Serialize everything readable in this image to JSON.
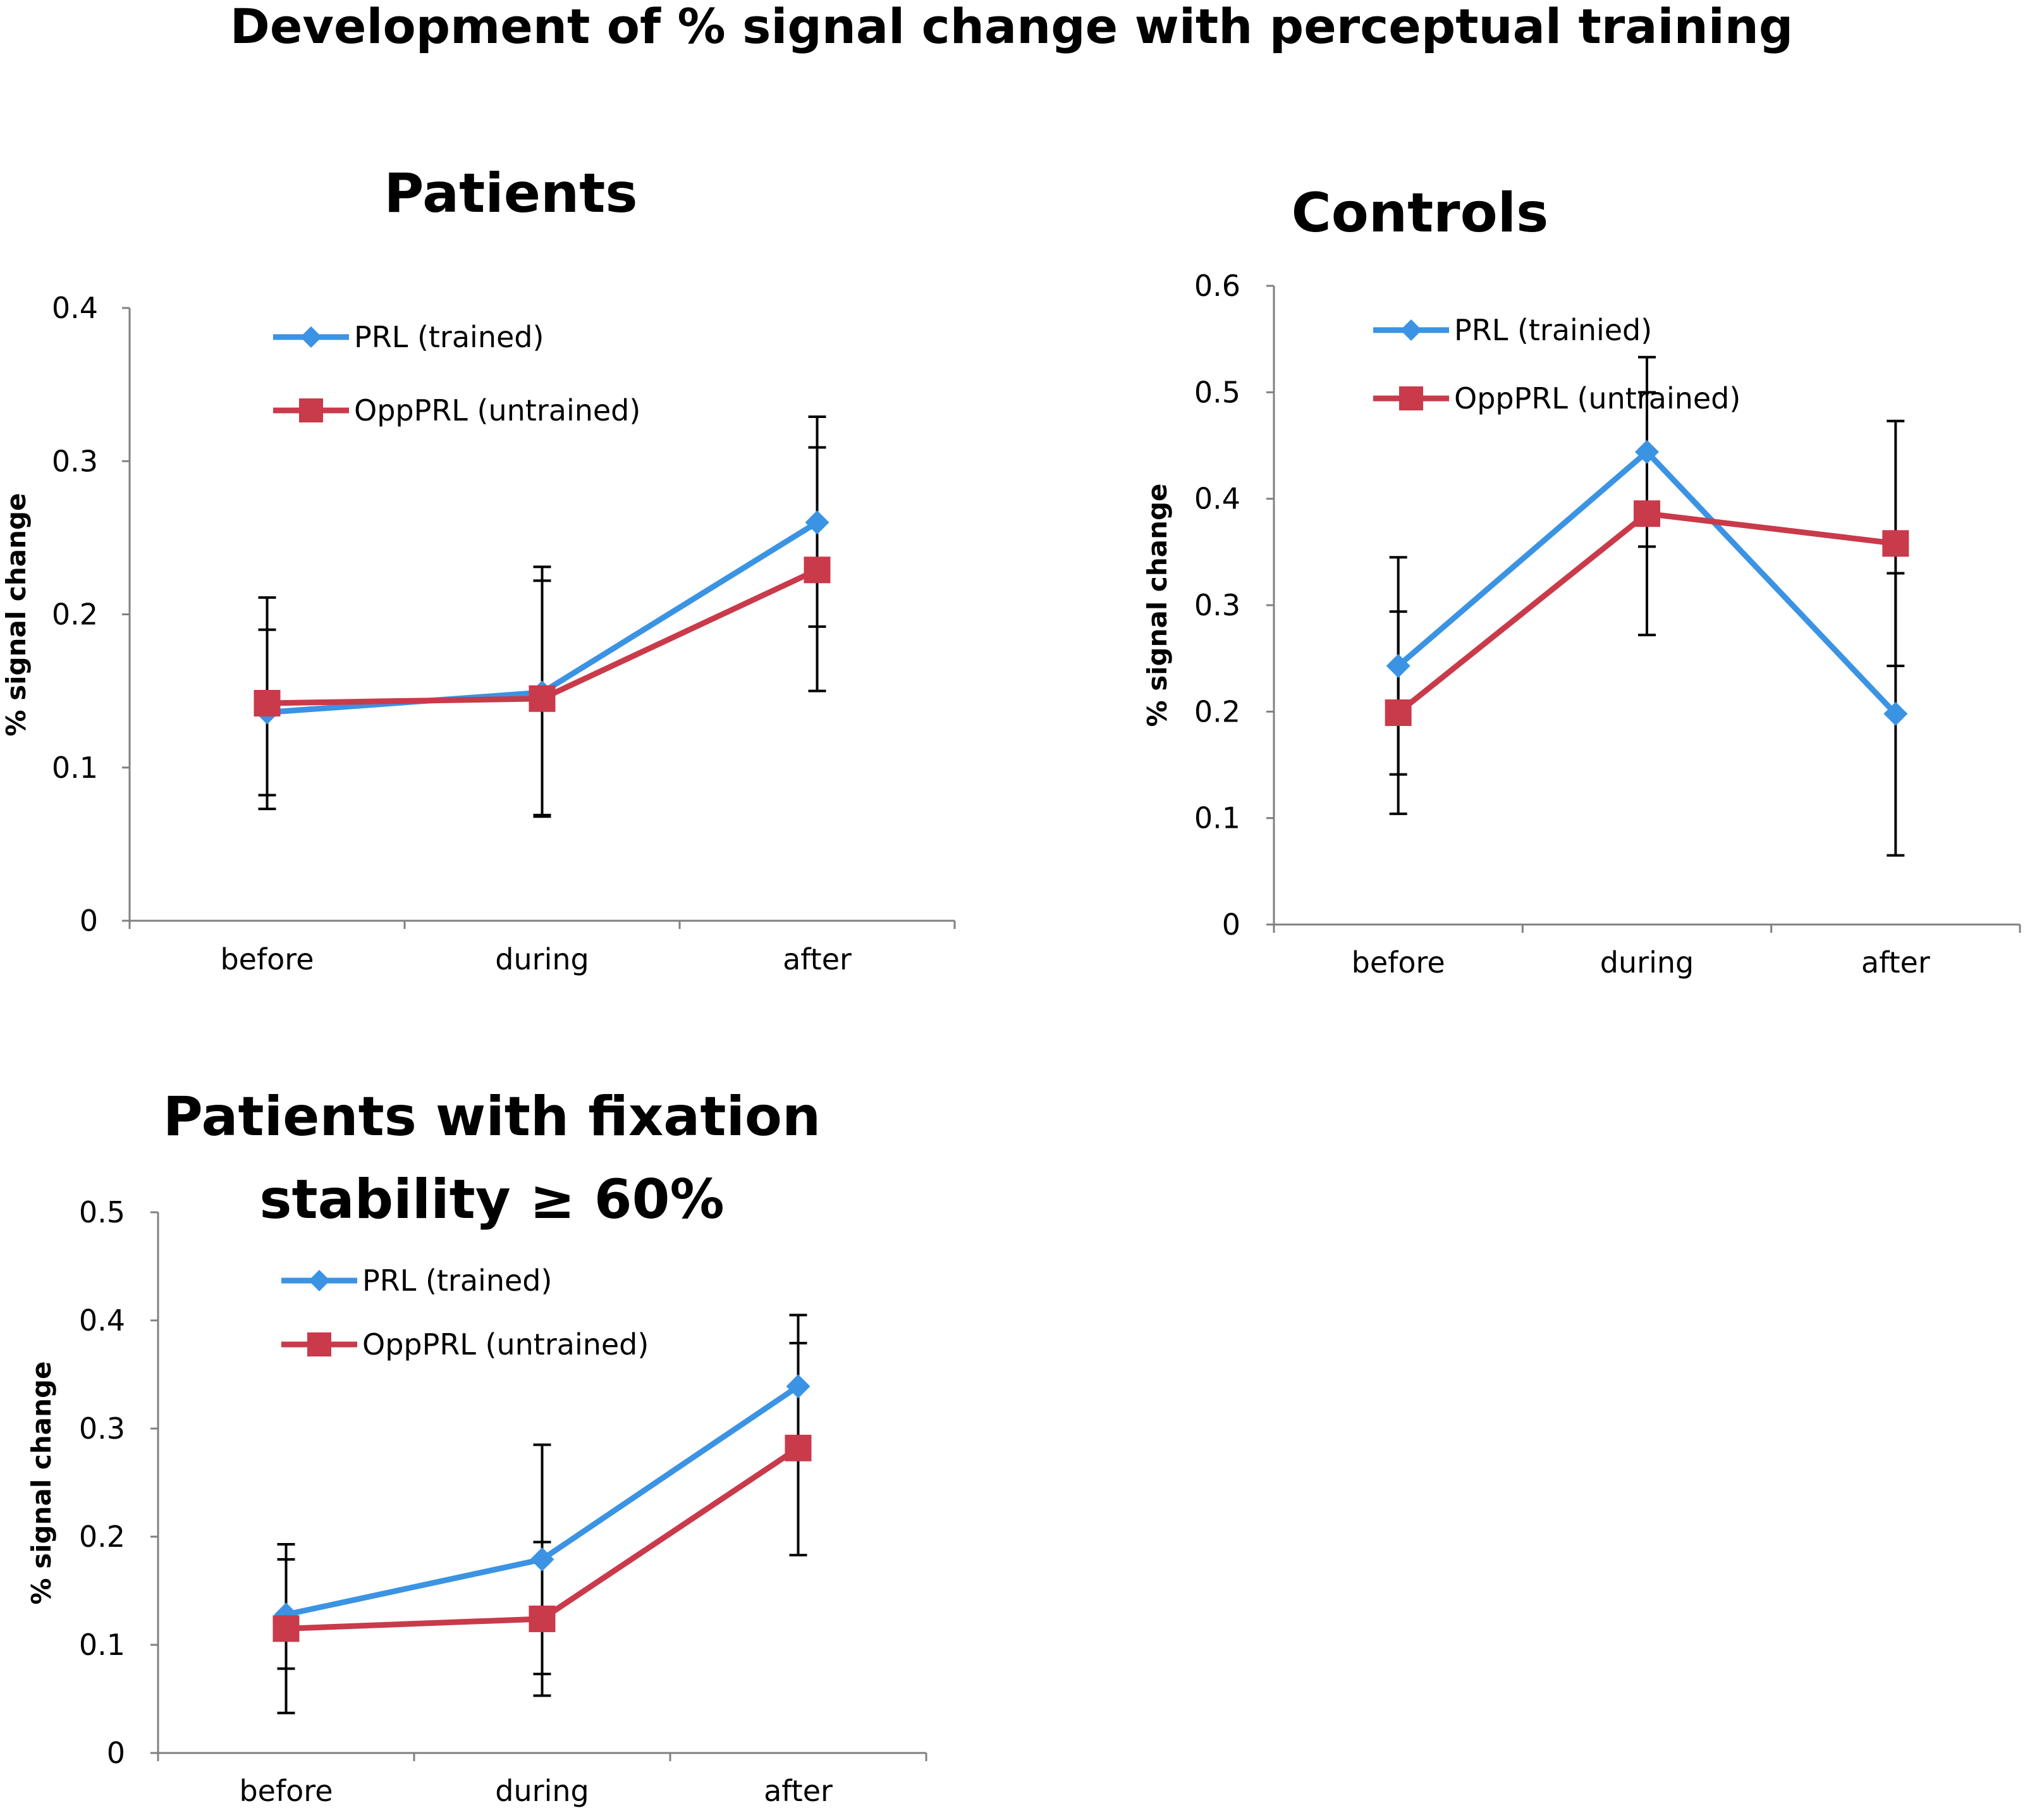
{
  "figure_title": "Development of % signal change with perceptual training",
  "colors": {
    "prl": "#3b93e3",
    "opp": "#c93a4a"
  },
  "chart_data": [
    {
      "type": "line",
      "title": "Patients",
      "title_lines": [
        "Patients"
      ],
      "xlabel": "",
      "ylabel": "% signal change",
      "categories": [
        "before",
        "during",
        "after"
      ],
      "ylim": [
        0,
        0.4
      ],
      "yticks": [
        0,
        0.1,
        0.2,
        0.3,
        0.4
      ],
      "ytick_labels": [
        "0",
        "0.1",
        "0.2",
        "0.3",
        "0.4"
      ],
      "grid": false,
      "legend_position": "top-left",
      "series": [
        {
          "name": "PRL (trained)",
          "marker": "diamond",
          "color": "#3b93e3",
          "values": [
            0.136,
            0.149,
            0.26
          ],
          "error_low": [
            0.082,
            0.069,
            0.192
          ],
          "error_high": [
            0.19,
            0.222,
            0.329
          ]
        },
        {
          "name": "OppPRL (untrained)",
          "marker": "square",
          "color": "#c93a4a",
          "values": [
            0.142,
            0.145,
            0.229
          ],
          "error_low": [
            0.073,
            0.068,
            0.15
          ],
          "error_high": [
            0.211,
            0.231,
            0.309
          ]
        }
      ]
    },
    {
      "type": "line",
      "title": "Controls",
      "title_lines": [
        "Controls"
      ],
      "xlabel": "",
      "ylabel": "% signal change",
      "categories": [
        "before",
        "during",
        "after"
      ],
      "ylim": [
        0,
        0.6
      ],
      "yticks": [
        0,
        0.1,
        0.2,
        0.3,
        0.4,
        0.5,
        0.6
      ],
      "ytick_labels": [
        "0",
        "0.1",
        "0.2",
        "0.3",
        "0.4",
        "0.5",
        "0.6"
      ],
      "grid": false,
      "legend_position": "top-left",
      "series": [
        {
          "name": "PRL (trainied)",
          "marker": "diamond",
          "color": "#3b93e3",
          "values": [
            0.243,
            0.444,
            0.198
          ],
          "error_low": [
            0.141,
            0.355,
            0.065
          ],
          "error_high": [
            0.345,
            0.533,
            0.33
          ]
        },
        {
          "name": "OppPRL (untrained)",
          "marker": "square",
          "color": "#c93a4a",
          "values": [
            0.199,
            0.386,
            0.358
          ],
          "error_low": [
            0.104,
            0.272,
            0.243
          ],
          "error_high": [
            0.294,
            0.5,
            0.473
          ]
        }
      ]
    },
    {
      "type": "line",
      "title": "Patients with fixation stability ≥ 60%",
      "title_lines": [
        "Patients with fixation",
        "stability ≥ 60%"
      ],
      "xlabel": "",
      "ylabel": "% signal change",
      "categories": [
        "before",
        "during",
        "after"
      ],
      "ylim": [
        0,
        0.5
      ],
      "yticks": [
        0,
        0.1,
        0.2,
        0.3,
        0.4,
        0.5
      ],
      "ytick_labels": [
        "0",
        "0.1",
        "0.2",
        "0.3",
        "0.4",
        "0.5"
      ],
      "grid": false,
      "legend_position": "top-left",
      "series": [
        {
          "name": "PRL (trained)",
          "marker": "diamond",
          "color": "#3b93e3",
          "values": [
            0.128,
            0.179,
            0.339
          ],
          "error_low": [
            0.078,
            0.073,
            0.272
          ],
          "error_high": [
            0.179,
            0.285,
            0.405
          ]
        },
        {
          "name": "OppPRL (untrained)",
          "marker": "square",
          "color": "#c93a4a",
          "values": [
            0.115,
            0.124,
            0.282
          ],
          "error_low": [
            0.037,
            0.053,
            0.183
          ],
          "error_high": [
            0.193,
            0.195,
            0.379
          ]
        }
      ]
    }
  ]
}
